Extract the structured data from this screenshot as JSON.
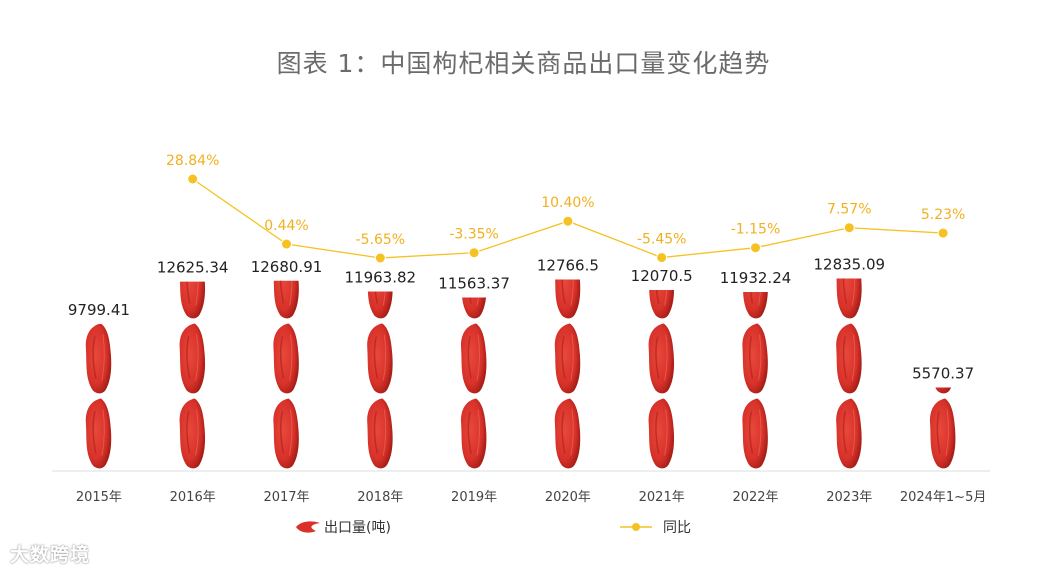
{
  "chart_data": {
    "type": "bar",
    "title": "图表 1：中国枸杞相关商品出口量变化趋势",
    "categories": [
      "2015年",
      "2016年",
      "2017年",
      "2018年",
      "2019年",
      "2020年",
      "2021年",
      "2022年",
      "2023年",
      "2024年1~5月"
    ],
    "series": [
      {
        "name": "出口量(吨)",
        "kind": "pictorial-bar",
        "values": [
          9799.41,
          12625.34,
          12680.91,
          11963.82,
          11563.37,
          12766.5,
          12070.5,
          11932.24,
          12835.09,
          5570.37
        ],
        "labels": [
          "9799.41",
          "12625.34",
          "12680.91",
          "11963.82",
          "11563.37",
          "12766.5",
          "12070.5",
          "11932.24",
          "12835.09",
          "5570.37"
        ]
      },
      {
        "name": "同比",
        "kind": "line",
        "values": [
          null,
          28.84,
          0.44,
          -5.65,
          -3.35,
          10.4,
          -5.45,
          -1.15,
          7.57,
          5.23
        ],
        "labels": [
          "",
          "28.84%",
          "0.44%",
          "-5.65%",
          "-3.35%",
          "10.40%",
          "-5.45%",
          "-1.15%",
          "7.57%",
          "5.23%"
        ]
      }
    ],
    "legend": "bottom",
    "colors": {
      "bar": "#d8322a",
      "bar_dark": "#a81f18",
      "line": "#f5c223",
      "axis": "#dddddd"
    }
  },
  "watermark": "大数跨境"
}
